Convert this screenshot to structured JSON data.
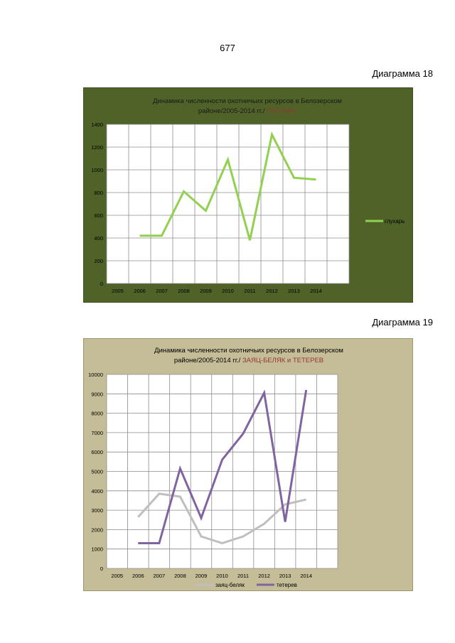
{
  "page": {
    "number": "677"
  },
  "labels": {
    "diagram18": "Диаграмма 18",
    "diagram19": "Диаграмма 19"
  },
  "colors": {
    "panel18": "#4f6228",
    "panel19": "#c4bd97",
    "grouse": "#92d050",
    "hare": "#bfbfbf",
    "blackgrouse": "#8064a2",
    "title_accent": "#943634"
  },
  "chart_data": [
    {
      "type": "line",
      "title_line1": "Динамика численности охотничьих ресурсов в Белозерском",
      "title_line2": "районе/2005-2014 гг./",
      "title_highlight": "ГЛУХАРЬ",
      "categories": [
        "2005",
        "2006",
        "2007",
        "2008",
        "2009",
        "2010",
        "2011",
        "2012",
        "2013",
        "2014"
      ],
      "ylim": [
        0,
        1400
      ],
      "yticks": [
        0,
        200,
        400,
        600,
        800,
        1000,
        1200,
        1400
      ],
      "grid": true,
      "legend_position": "right",
      "series": [
        {
          "name": "глухарь",
          "color": "#92d050",
          "values": [
            null,
            420,
            420,
            810,
            640,
            1090,
            380,
            1310,
            930,
            915
          ]
        }
      ]
    },
    {
      "type": "line",
      "title_line1": "Динамика численности  охотничьих ресурсов  в Белозерском",
      "title_line2": "районе/2005-2014  гг./",
      "title_highlight": "ЗАЯЦ-БЕЛЯК и ТЕТЕРЕВ",
      "categories": [
        "2005",
        "2006",
        "2007",
        "2008",
        "2009",
        "2010",
        "2011",
        "2012",
        "2013",
        "2014"
      ],
      "ylim": [
        0,
        10000
      ],
      "yticks": [
        0,
        1000,
        2000,
        3000,
        4000,
        5000,
        6000,
        7000,
        8000,
        9000,
        10000
      ],
      "grid": true,
      "legend_position": "bottom",
      "series": [
        {
          "name": "заяц-беляк",
          "color": "#bfbfbf",
          "values": [
            null,
            2650,
            3850,
            3700,
            1650,
            1300,
            1650,
            2300,
            3300,
            3550
          ]
        },
        {
          "name": "тетерев",
          "color": "#8064a2",
          "values": [
            null,
            1300,
            1300,
            5150,
            2600,
            5600,
            6950,
            9050,
            2400,
            9200
          ]
        }
      ]
    }
  ]
}
